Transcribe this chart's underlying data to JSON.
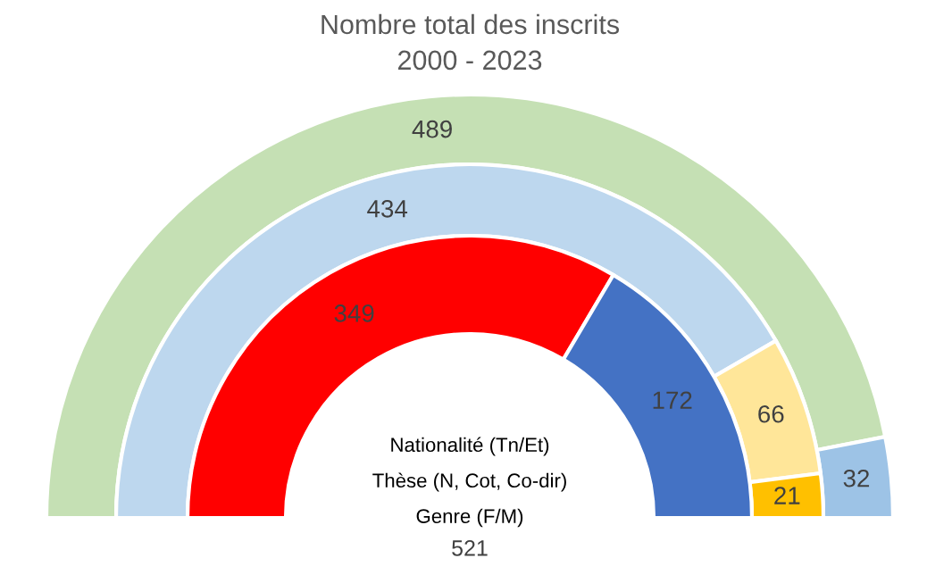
{
  "chart_data": {
    "type": "donut",
    "title": "Nombre total des inscrits",
    "subtitle": "2000 - 2023",
    "series": [
      {
        "values": [
          489,
          32
        ],
        "colors": [
          "#c5e0b4",
          "#9dc3e6"
        ]
      },
      {
        "values": [
          434,
          66,
          21
        ],
        "colors": [
          "#bdd7ee",
          "#ffe699",
          "#ffc000"
        ]
      },
      {
        "values": [
          349,
          172
        ],
        "colors": [
          "#ff0000",
          "#4472c4"
        ]
      }
    ],
    "data_labels": true,
    "annotations": [
      "Nationalité (Tn/Et)",
      "Thèse (N, Cot, Co-dir)",
      "Genre (F/M)",
      "521"
    ]
  }
}
